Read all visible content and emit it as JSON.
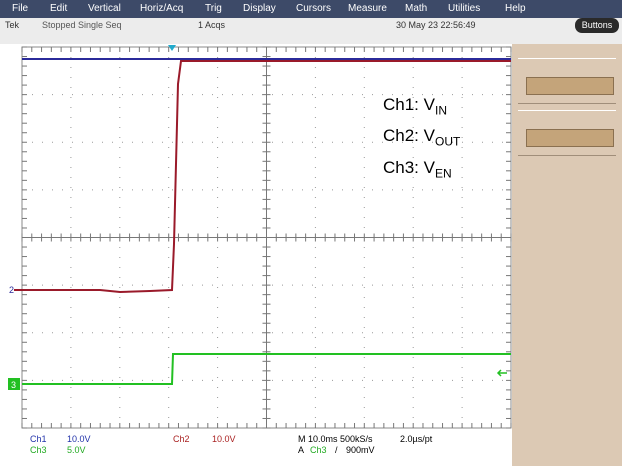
{
  "menu": [
    "File",
    "Edit",
    "Vertical",
    "Horiz/Acq",
    "Trig",
    "Display",
    "Cursors",
    "Measure",
    "Math",
    "Utilities",
    "Help"
  ],
  "status": {
    "brand": "Tek",
    "state": "Stopped  Single Seq",
    "acqs": "1 Acqs",
    "datetime": "30 May 23 22:56:49",
    "button": "Buttons"
  },
  "markers": {
    "ch2": "2",
    "ch3": "3"
  },
  "annotations": [
    {
      "text": "Ch1: V",
      "sub": "IN"
    },
    {
      "text": "Ch2: V",
      "sub": "OUT"
    },
    {
      "text": "Ch3: V",
      "sub": "EN"
    }
  ],
  "readout": {
    "ch1": {
      "name": "Ch1",
      "scale": "10.0V"
    },
    "ch3": {
      "name": "Ch3",
      "scale": "5.0V"
    },
    "ch2": {
      "name": "Ch2",
      "scale": "10.0V"
    },
    "horizontal": "M 10.0ms 500kS/s",
    "resolution": "2.0µs/pt",
    "trigger": {
      "prefix": "A",
      "source": "Ch3",
      "slope": "/",
      "level": "900mV"
    }
  }
}
